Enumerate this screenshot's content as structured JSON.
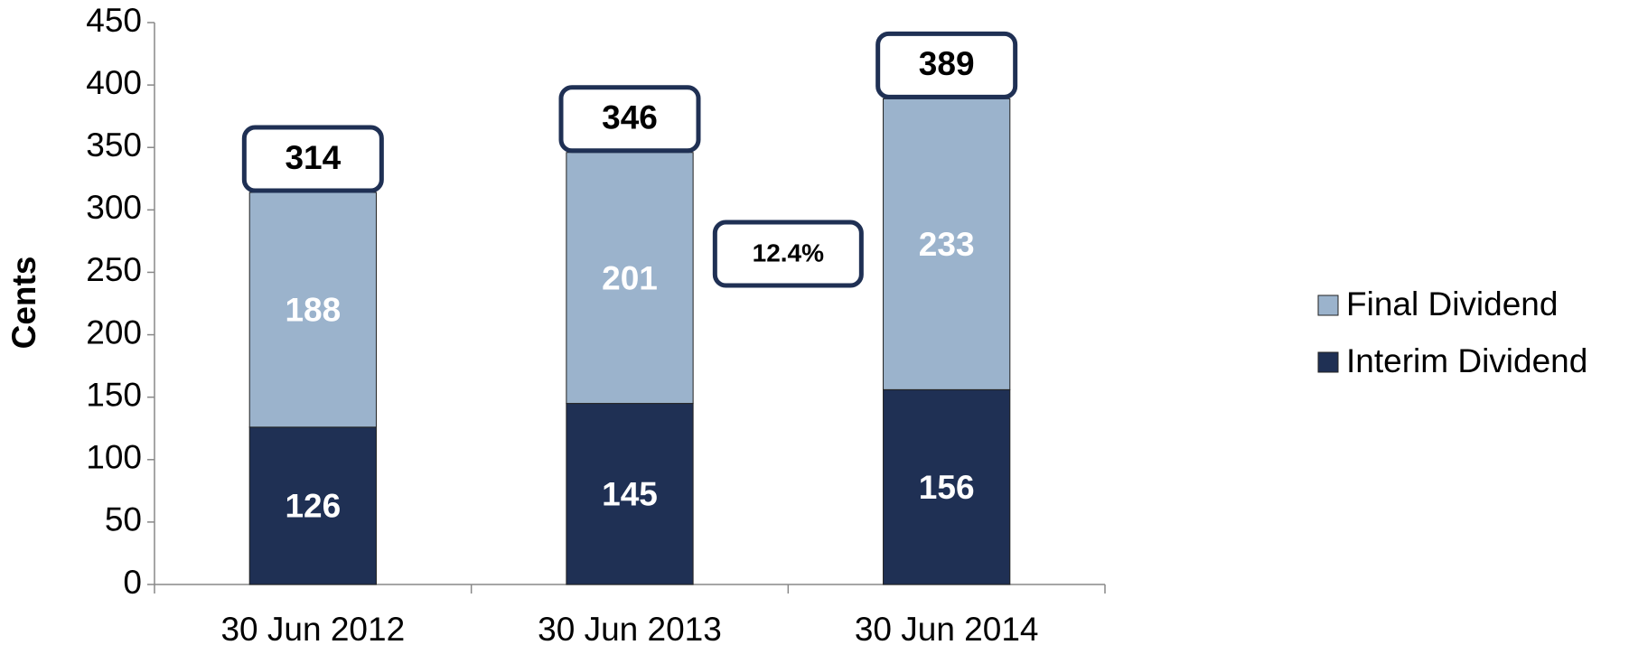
{
  "chart_data": {
    "type": "stacked_bar",
    "y_label": "Cents",
    "categories": [
      "30 Jun 2012",
      "30 Jun 2013",
      "30 Jun 2014"
    ],
    "series": [
      {
        "name": "Interim Dividend",
        "color": "#1f3054",
        "values": [
          126,
          145,
          156
        ]
      },
      {
        "name": "Final Dividend",
        "color": "#9bb3cc",
        "values": [
          188,
          201,
          233
        ]
      }
    ],
    "totals": [
      314,
      346,
      389
    ],
    "annotation": "12.4%",
    "ylim": [
      0,
      450
    ],
    "yticks": [
      0,
      50,
      100,
      150,
      200,
      250,
      300,
      350,
      400,
      450
    ],
    "grid": false,
    "legend": "right"
  }
}
